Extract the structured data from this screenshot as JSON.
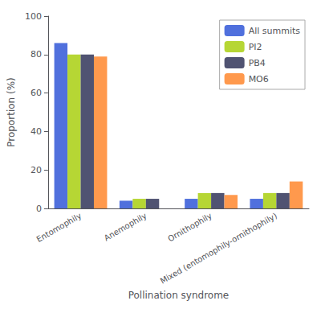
{
  "chart_data": {
    "type": "bar",
    "categories": [
      "Entomophily",
      "Anemophily",
      "Ornithophily",
      "Mixed (entomophily-ornithophily)"
    ],
    "series": [
      {
        "name": "All summits",
        "values": [
          86,
          4,
          5,
          5
        ]
      },
      {
        "name": "PI2",
        "values": [
          80,
          5,
          8,
          8
        ]
      },
      {
        "name": "PB4",
        "values": [
          80,
          5,
          8,
          8
        ]
      },
      {
        "name": "MO6",
        "values": [
          79,
          0,
          7,
          14
        ]
      }
    ],
    "xlabel": "Pollination syndrome",
    "ylabel": "Proportion (%)",
    "ylim": [
      0,
      100
    ],
    "yticks": [
      0,
      20,
      40,
      60,
      80,
      100
    ],
    "legend": "upper right",
    "grid": false
  }
}
